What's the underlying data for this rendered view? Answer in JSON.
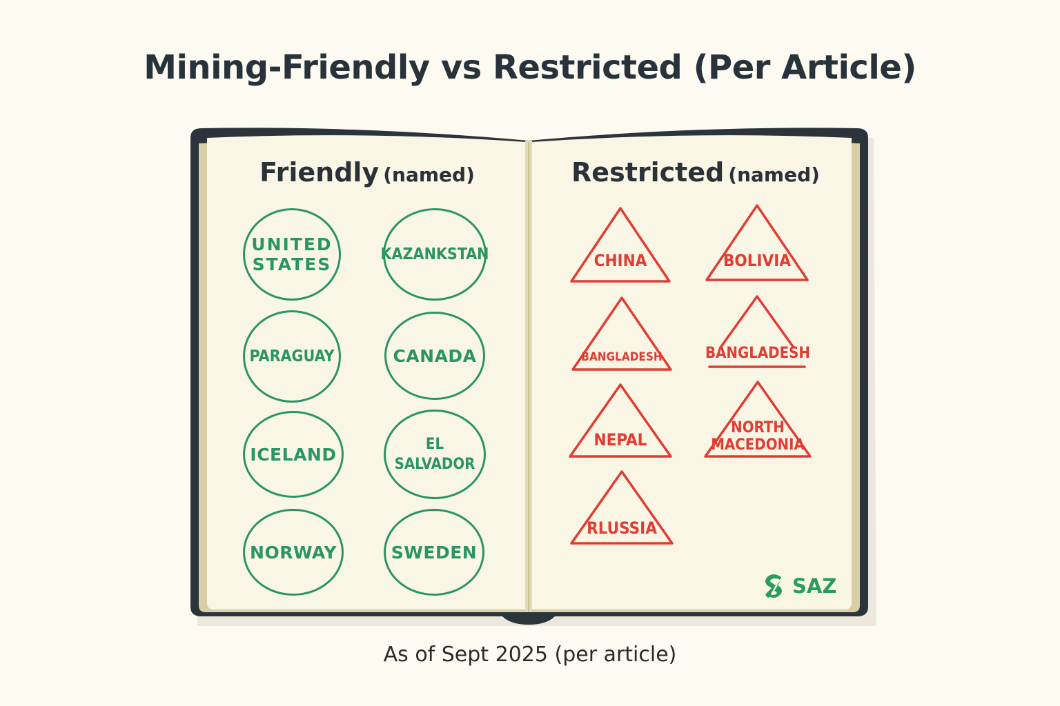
{
  "title": "Mining-Friendly vs Restricted (Per Article)",
  "footer": "As of Sept 2025 (per article)",
  "left_page": {
    "heading": "Friendly",
    "heading_note": "(named)",
    "countries": [
      {
        "line1": "UNITED",
        "line2": "STATES"
      },
      {
        "line1": "KAZANKSTAN",
        "line2": ""
      },
      {
        "line1": "PARAGUAY",
        "line2": ""
      },
      {
        "line1": "CANADA",
        "line2": ""
      },
      {
        "line1": "ICELAND",
        "line2": ""
      },
      {
        "line1": "EL SALVADOR",
        "line2": ""
      },
      {
        "line1": "NORWAY",
        "line2": ""
      },
      {
        "line1": "SWEDEN",
        "line2": ""
      }
    ]
  },
  "right_page": {
    "heading": "Restricted",
    "heading_note": "(named)",
    "countries": [
      {
        "line1": "CHINA",
        "line2": ""
      },
      {
        "line1": "BOLIVIA",
        "line2": ""
      },
      {
        "line1": "BANGLADESH",
        "line2": ""
      },
      {
        "line1": "BANGLADESH",
        "line2": ""
      },
      {
        "line1": "NEPAL",
        "line2": ""
      },
      {
        "line1": "NORTH",
        "line2": "MACEDONIA"
      },
      {
        "line1": "RLUSSIA",
        "line2": ""
      }
    ]
  },
  "logo": {
    "text": "SAZ",
    "icon": "saz-logo-icon"
  },
  "colors": {
    "friendly": "#2a9464",
    "restricted": "#e23b32",
    "book_cover": "#2b343b",
    "page": "#faf6e6",
    "background": "#fdfaf1"
  }
}
